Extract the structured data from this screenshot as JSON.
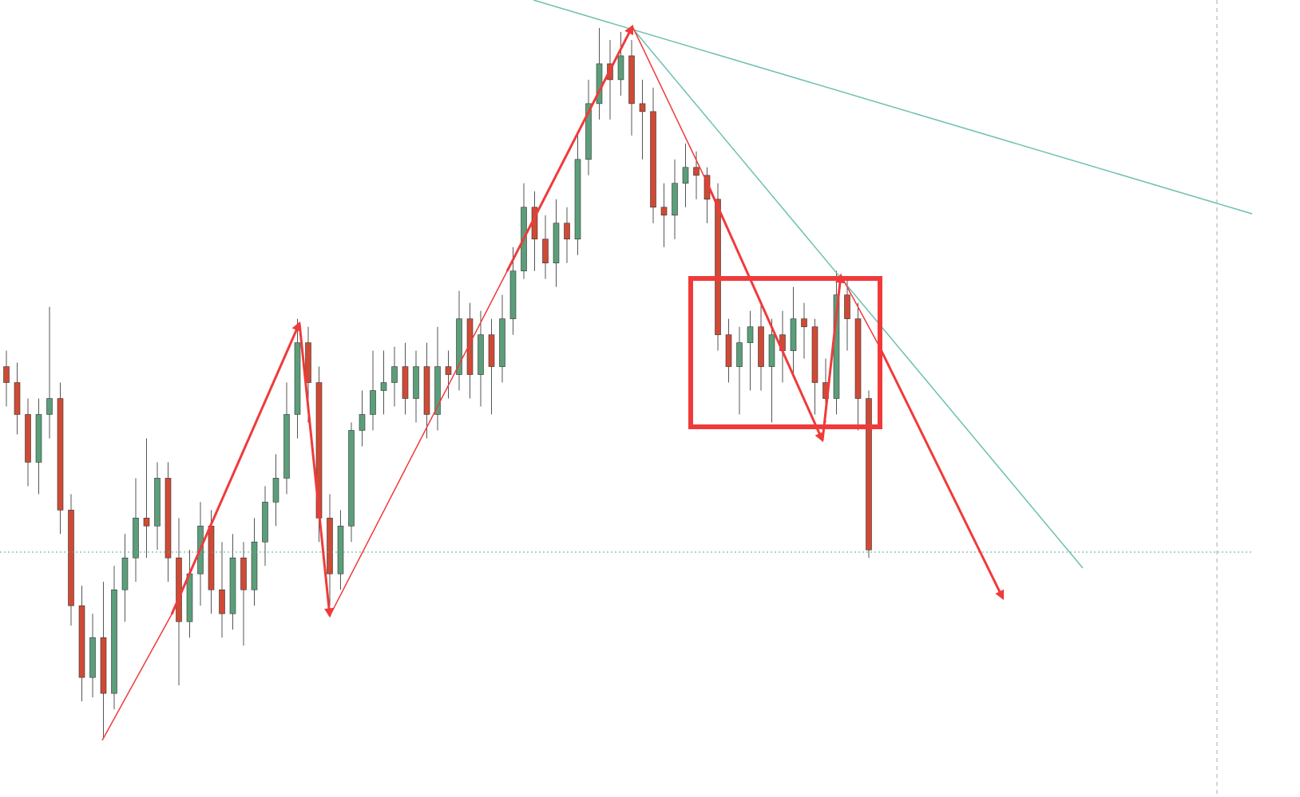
{
  "chart_data": {
    "type": "candlestick",
    "open": [
      540,
      520,
      480,
      420,
      480,
      500,
      360,
      240,
      150,
      200,
      130,
      260,
      300,
      350,
      340,
      400,
      300,
      220,
      280,
      340,
      260,
      230,
      300,
      260,
      320,
      370,
      400,
      480,
      570,
      520,
      350,
      280,
      340,
      460,
      480,
      510,
      520,
      540,
      500,
      540,
      480,
      540,
      530,
      600,
      530,
      580,
      540,
      600,
      660,
      740,
      700,
      670,
      720,
      700,
      800,
      870,
      920,
      900,
      930,
      870,
      860,
      740,
      730,
      770,
      790,
      780,
      750,
      580,
      540,
      570,
      590,
      540,
      580,
      560,
      600,
      590,
      520,
      500,
      630,
      600,
      500
    ],
    "high": [
      560,
      545,
      500,
      500,
      615,
      520,
      380,
      265,
      230,
      270,
      290,
      330,
      400,
      450,
      420,
      420,
      350,
      310,
      370,
      360,
      320,
      330,
      320,
      350,
      390,
      430,
      520,
      600,
      590,
      540,
      380,
      360,
      470,
      510,
      560,
      560,
      565,
      570,
      560,
      570,
      590,
      560,
      635,
      620,
      610,
      600,
      630,
      690,
      770,
      760,
      730,
      750,
      740,
      830,
      900,
      965,
      950,
      960,
      950,
      900,
      890,
      770,
      800,
      820,
      810,
      790,
      770,
      600,
      590,
      610,
      620,
      600,
      610,
      640,
      620,
      600,
      550,
      660,
      650,
      620,
      510
    ],
    "low": [
      490,
      455,
      390,
      380,
      450,
      330,
      215,
      120,
      125,
      75,
      110,
      220,
      270,
      300,
      310,
      270,
      140,
      200,
      240,
      230,
      200,
      210,
      190,
      240,
      290,
      340,
      380,
      450,
      470,
      320,
      240,
      260,
      320,
      440,
      460,
      480,
      490,
      480,
      470,
      450,
      460,
      500,
      510,
      500,
      490,
      480,
      520,
      580,
      650,
      660,
      650,
      640,
      670,
      680,
      780,
      850,
      850,
      880,
      830,
      800,
      720,
      690,
      700,
      740,
      750,
      720,
      560,
      520,
      480,
      510,
      510,
      470,
      520,
      530,
      550,
      480,
      470,
      480,
      560,
      460,
      300
    ],
    "close": [
      520,
      480,
      420,
      480,
      500,
      360,
      240,
      150,
      200,
      130,
      260,
      300,
      350,
      340,
      400,
      300,
      220,
      280,
      340,
      260,
      230,
      300,
      260,
      320,
      370,
      400,
      480,
      570,
      520,
      350,
      280,
      340,
      460,
      480,
      510,
      520,
      540,
      500,
      540,
      480,
      540,
      530,
      600,
      530,
      580,
      540,
      600,
      660,
      740,
      700,
      670,
      720,
      700,
      800,
      870,
      920,
      900,
      930,
      870,
      860,
      740,
      730,
      770,
      790,
      780,
      750,
      580,
      540,
      570,
      590,
      540,
      580,
      560,
      600,
      590,
      520,
      500,
      630,
      600,
      500,
      310
    ],
    "ylim": [
      0,
      1000
    ],
    "up_color": "#5b9e7a",
    "down_color": "#cf4a35"
  }
}
